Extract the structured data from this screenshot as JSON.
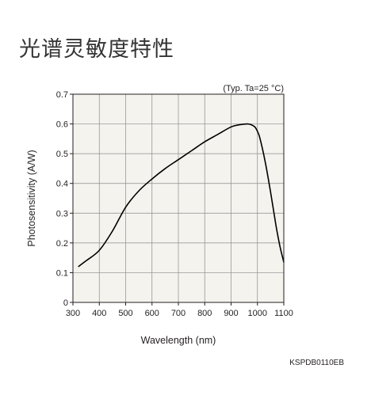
{
  "page": {
    "title": "光谱灵敏度特性"
  },
  "chart_data": {
    "type": "line",
    "title": "",
    "condition_note": "(Typ. Ta=25 °C)",
    "xlabel": "Wavelength (nm)",
    "ylabel": "Photosensitivity (A/W)",
    "xlim": [
      300,
      1100
    ],
    "ylim": [
      0,
      0.7
    ],
    "xticks": [
      300,
      400,
      500,
      600,
      700,
      800,
      900,
      1000,
      1100
    ],
    "xtick_labels": [
      "300",
      "400",
      "500",
      "600",
      "700",
      "800",
      "900",
      "1000",
      "1100"
    ],
    "yticks": [
      0,
      0.1,
      0.2,
      0.3,
      0.4,
      0.5,
      0.6,
      0.7
    ],
    "ytick_labels": [
      "0",
      "0.1",
      "0.2",
      "0.3",
      "0.4",
      "0.5",
      "0.6",
      "0.7"
    ],
    "grid": true,
    "series": [
      {
        "color": "#000000",
        "x": [
          320,
          350,
          400,
          450,
          500,
          550,
          600,
          650,
          700,
          750,
          800,
          850,
          900,
          930,
          960,
          975,
          990,
          1000,
          1010,
          1030,
          1050,
          1070,
          1085,
          1100
        ],
        "y": [
          0.12,
          0.14,
          0.175,
          0.24,
          0.32,
          0.375,
          0.415,
          0.45,
          0.48,
          0.51,
          0.54,
          0.565,
          0.59,
          0.597,
          0.6,
          0.598,
          0.59,
          0.575,
          0.55,
          0.47,
          0.37,
          0.26,
          0.19,
          0.135
        ]
      }
    ],
    "document_code": "KSPDB0110EB",
    "colors": {
      "plot_background": "#f4f3ee",
      "grid": "#8c8c8c",
      "frame": "#231f20",
      "curve": "#000000"
    }
  }
}
